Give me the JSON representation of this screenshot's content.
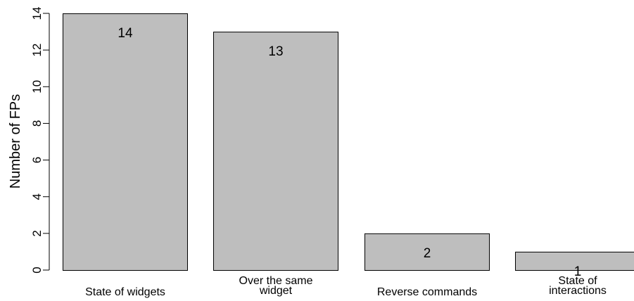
{
  "chart_data": {
    "type": "bar",
    "categories": [
      [
        "State of widgets"
      ],
      [
        "Over the same",
        "widget"
      ],
      [
        "Reverse commands"
      ],
      [
        "State of",
        "interactions"
      ]
    ],
    "values": [
      14,
      13,
      2,
      1
    ],
    "data_labels": [
      "14",
      "13",
      "2",
      "1"
    ],
    "ylabel": "Number of FPs",
    "ylim": [
      0,
      14
    ],
    "yticks": [
      "0",
      "2",
      "4",
      "6",
      "8",
      "10",
      "12",
      "14"
    ],
    "grid": false,
    "bar_color": "#bebebe",
    "bar_edge_color": "#000000"
  }
}
